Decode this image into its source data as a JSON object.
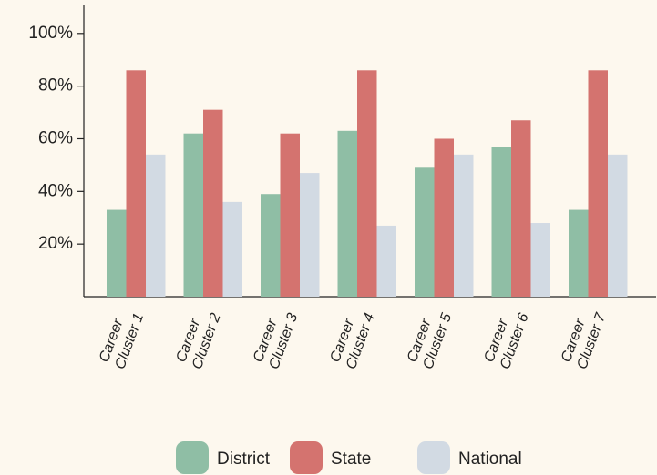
{
  "chart_data": {
    "type": "bar",
    "categories": [
      "Career Cluster 1",
      "Career Cluster 2",
      "Career Cluster 3",
      "Career Cluster 4",
      "Career Cluster 5",
      "Career Cluster 6",
      "Career Cluster 7"
    ],
    "series": [
      {
        "name": "District",
        "color": "#8fbea5",
        "values": [
          33,
          62,
          39,
          63,
          49,
          57,
          33
        ]
      },
      {
        "name": "State",
        "color": "#d4736f",
        "values": [
          86,
          71,
          62,
          86,
          60,
          67,
          86
        ]
      },
      {
        "name": "National",
        "color": "#d2dae3",
        "values": [
          54,
          36,
          47,
          27,
          54,
          28,
          54
        ]
      }
    ],
    "ylim": [
      0,
      111
    ],
    "yticks": [
      {
        "value": 20,
        "label": "20%"
      },
      {
        "value": 40,
        "label": "40%"
      },
      {
        "value": 60,
        "label": "60%"
      },
      {
        "value": 80,
        "label": "80%"
      },
      {
        "value": 100,
        "label": "100%"
      }
    ],
    "legend": "bottom"
  }
}
